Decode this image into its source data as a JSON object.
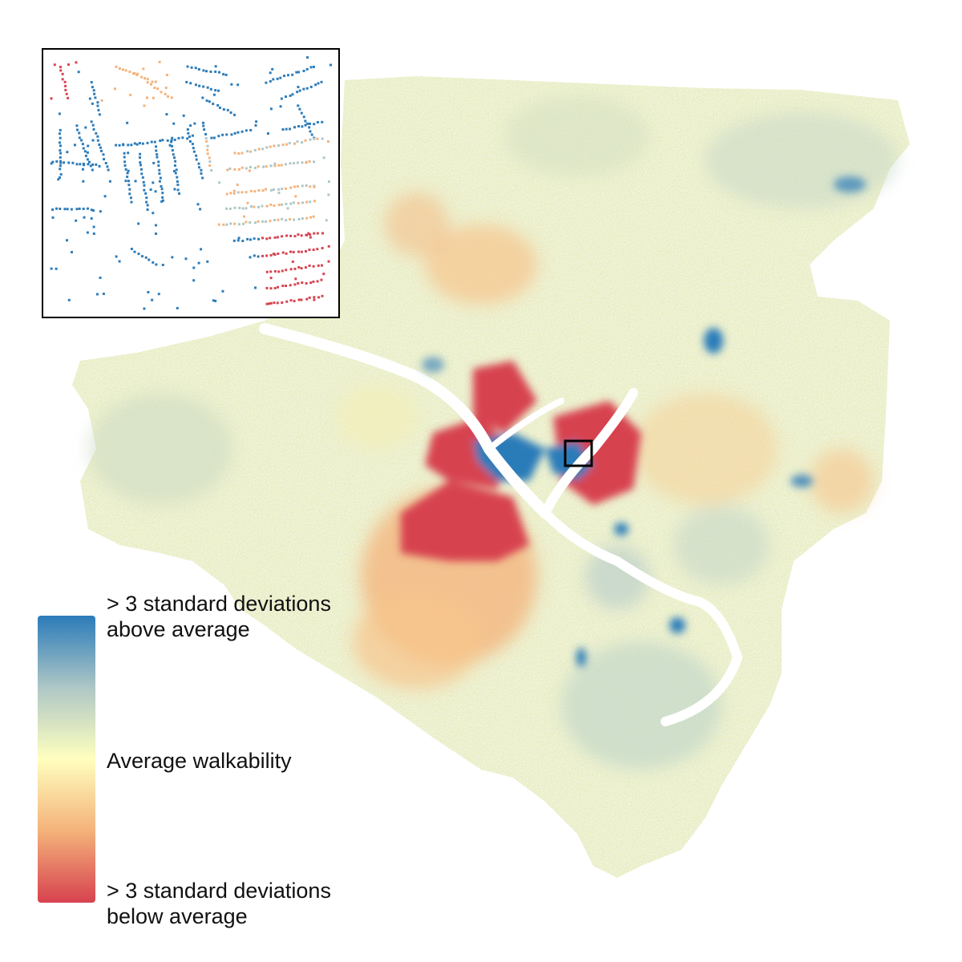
{
  "colors": {
    "high": "#2b7bb9",
    "mid_high": "#aec7c6",
    "avg": "#ffffbf",
    "mid_low": "#f4b27a",
    "low": "#d7424f"
  },
  "legend": {
    "high_line1": "> 3 standard deviations",
    "high_line2": "above average",
    "average": "Average walkability",
    "low_line1": "> 3 standard deviations",
    "low_line2": "below average"
  }
}
